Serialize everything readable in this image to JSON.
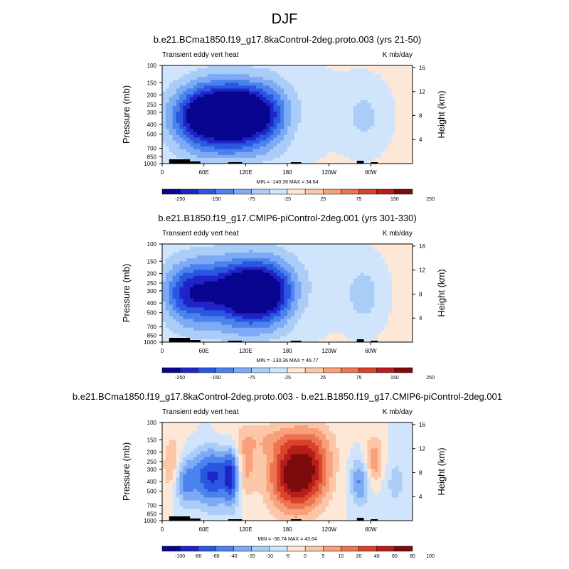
{
  "figure": {
    "title": "DJF"
  },
  "colors": {
    "abs_scale": [
      "#08058e",
      "#1f24c8",
      "#2a57e0",
      "#4a82ee",
      "#7eaaf5",
      "#aacdf8",
      "#d0e5fc",
      "#fde8d8",
      "#fbc7a8",
      "#f7a07a",
      "#ee7451",
      "#d9432c",
      "#b81d1a",
      "#7c0b0c"
    ],
    "diff_scale": [
      "#08058e",
      "#1f24c8",
      "#2a57e0",
      "#4a82ee",
      "#7eaaf5",
      "#aacdf8",
      "#d0e5fc",
      "#fde8d8",
      "#fbc7a8",
      "#f7a07a",
      "#ee7451",
      "#d9432c",
      "#b81d1a",
      "#7c0b0c"
    ],
    "terrain": "#000000"
  },
  "chart_data": [
    {
      "type": "heatmap",
      "title": "b.e21.BCma1850.f19_g17.8kaControl-2deg.proto.003 (yrs 21-50)",
      "left_label": "Transient eddy vert heat",
      "right_label": "K mb/day",
      "ylabel": "Pressure (mb)",
      "y2label": "Height (km)",
      "pressure_ticks": [
        "100",
        "150",
        "200",
        "250",
        "300",
        "400",
        "500",
        "700",
        "850",
        "1000"
      ],
      "height_ticks": [
        "4",
        "8",
        "12",
        "16"
      ],
      "lon_ticks": [
        "0",
        "60E",
        "120E",
        "180",
        "120W",
        "60W"
      ],
      "lon_range": [
        0,
        360
      ],
      "stats": "MIN = -140.36  MAX = 34.64",
      "colorbar_labels": [
        "-250",
        "-150",
        "-75",
        "-25",
        "25",
        "75",
        "150",
        "250"
      ],
      "blobs": [
        {
          "lon": 40,
          "lev": 350,
          "sx": 30,
          "sy": 5,
          "amp": 0.45
        },
        {
          "lon": 75,
          "lev": 330,
          "sx": 28,
          "sy": 5,
          "amp": 1.0
        },
        {
          "lon": 110,
          "lev": 330,
          "sx": 20,
          "sy": 4.5,
          "amp": 0.8
        },
        {
          "lon": 145,
          "lev": 330,
          "sx": 25,
          "sy": 5,
          "amp": 0.75
        },
        {
          "lon": 110,
          "lev": 250,
          "sx": 70,
          "sy": 7,
          "amp": 0.25
        },
        {
          "lon": 290,
          "lev": 330,
          "sx": 22,
          "sy": 5,
          "amp": 0.22
        },
        {
          "lon": 100,
          "lev": 800,
          "sx": 60,
          "sy": 2,
          "amp": 0.12
        }
      ]
    },
    {
      "type": "heatmap",
      "title": "b.e21.B1850.f19_g17.CMIP6-piControl-2deg.001 (yrs 301-330)",
      "left_label": "Transient eddy vert heat",
      "right_label": "K mb/day",
      "ylabel": "Pressure (mb)",
      "y2label": "Height (km)",
      "pressure_ticks": [
        "100",
        "150",
        "200",
        "250",
        "300",
        "400",
        "500",
        "700",
        "850",
        "1000"
      ],
      "height_ticks": [
        "4",
        "8",
        "12",
        "16"
      ],
      "lon_ticks": [
        "0",
        "60E",
        "120E",
        "180",
        "120W",
        "60W"
      ],
      "lon_range": [
        0,
        360
      ],
      "stats": "MIN = -130.36  MAX = 46.77",
      "colorbar_labels": [
        "-250",
        "-150",
        "-75",
        "-25",
        "25",
        "75",
        "150",
        "250"
      ],
      "blobs": [
        {
          "lon": 25,
          "lev": 330,
          "sx": 20,
          "sy": 5,
          "amp": 0.4
        },
        {
          "lon": 60,
          "lev": 320,
          "sx": 25,
          "sy": 5,
          "amp": 0.65
        },
        {
          "lon": 115,
          "lev": 320,
          "sx": 25,
          "sy": 5,
          "amp": 0.9
        },
        {
          "lon": 155,
          "lev": 320,
          "sx": 25,
          "sy": 5,
          "amp": 0.85
        },
        {
          "lon": 110,
          "lev": 250,
          "sx": 80,
          "sy": 7,
          "amp": 0.28
        },
        {
          "lon": 290,
          "lev": 330,
          "sx": 18,
          "sy": 5,
          "amp": 0.25
        },
        {
          "lon": 100,
          "lev": 800,
          "sx": 60,
          "sy": 2,
          "amp": 0.1
        }
      ]
    },
    {
      "type": "heatmap",
      "title": "b.e21.BCma1850.f19_g17.8kaControl-2deg.proto.003 - b.e21.B1850.f19_g17.CMIP6-piControl-2deg.001",
      "left_label": "Transient eddy vert heat",
      "right_label": "K mb/day",
      "ylabel": "Pressure (mb)",
      "y2label": "Height (km)",
      "pressure_ticks": [
        "100",
        "150",
        "200",
        "250",
        "300",
        "400",
        "500",
        "700",
        "850",
        "1000"
      ],
      "height_ticks": [
        "4",
        "8",
        "12",
        "16"
      ],
      "lon_ticks": [
        "0",
        "60E",
        "120E",
        "180",
        "120W",
        "60W"
      ],
      "lon_range": [
        0,
        360
      ],
      "stats": "MIN = -36.74  MAX = 43.64",
      "colorbar_labels": [
        "-100",
        "-80",
        "-60",
        "-40",
        "-20",
        "-10",
        "-5",
        "0",
        "5",
        "10",
        "20",
        "40",
        "60",
        "80",
        "100"
      ],
      "blobs": [
        {
          "lon": 15,
          "lev": 300,
          "sx": 10,
          "sy": 5,
          "amp": 0.4
        },
        {
          "lon": 30,
          "lev": 400,
          "sx": 12,
          "sy": 4,
          "amp": -0.5
        },
        {
          "lon": 72,
          "lev": 350,
          "sx": 20,
          "sy": 5,
          "amp": -0.8
        },
        {
          "lon": 100,
          "lev": 350,
          "sx": 8,
          "sy": 5,
          "amp": -0.6
        },
        {
          "lon": 120,
          "lev": 300,
          "sx": 10,
          "sy": 5,
          "amp": 0.35
        },
        {
          "lon": 188,
          "lev": 350,
          "sx": 25,
          "sy": 6,
          "amp": 1.0
        },
        {
          "lon": 220,
          "lev": 280,
          "sx": 20,
          "sy": 6,
          "amp": 0.45
        },
        {
          "lon": 285,
          "lev": 400,
          "sx": 10,
          "sy": 4,
          "amp": -0.5
        },
        {
          "lon": 305,
          "lev": 250,
          "sx": 10,
          "sy": 4,
          "amp": 0.45
        },
        {
          "lon": 150,
          "lev": 150,
          "sx": 60,
          "sy": 3,
          "amp": 0.22
        },
        {
          "lon": 335,
          "lev": 400,
          "sx": 15,
          "sy": 5,
          "amp": -0.2
        }
      ]
    }
  ]
}
